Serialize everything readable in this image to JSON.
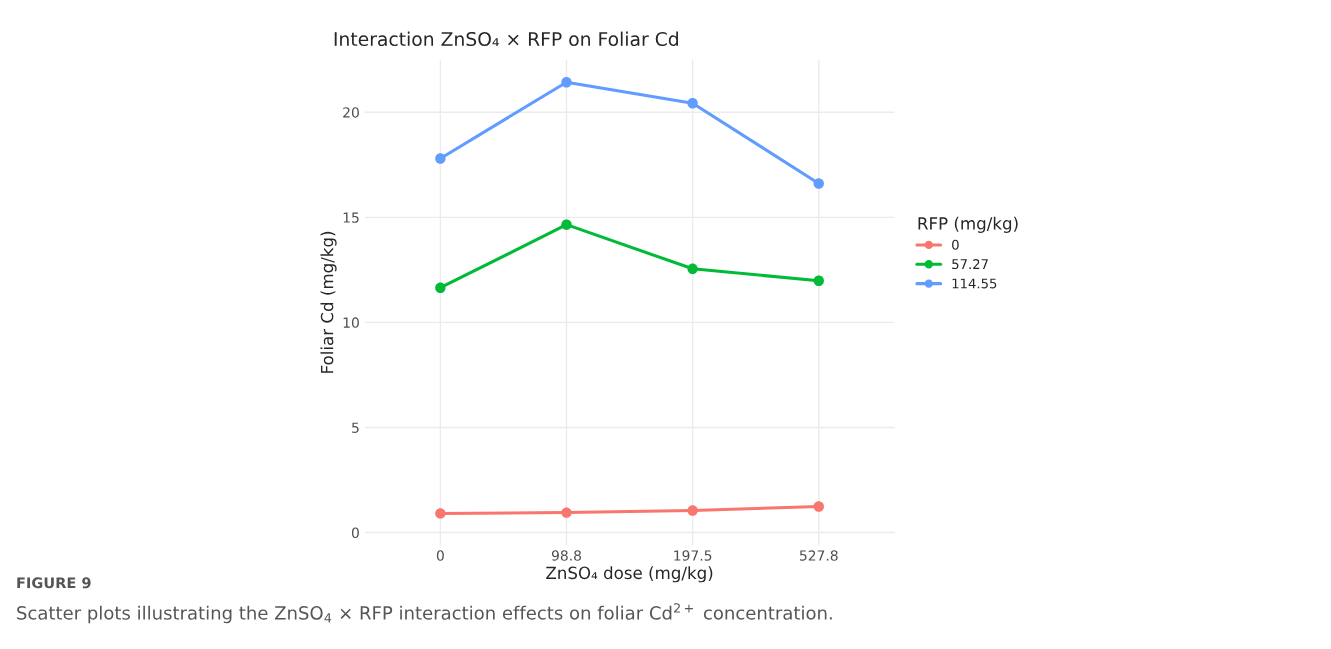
{
  "chart_data": {
    "type": "line",
    "title": "Interaction ZnSO₄ × RFP on Foliar Cd",
    "xlabel": "ZnSO₄ dose (mg/kg)",
    "ylabel": "Foliar Cd (mg/kg)",
    "legend_title": "RFP (mg/kg)",
    "categories": [
      "0",
      "98.8",
      "197.5",
      "527.8"
    ],
    "series": [
      {
        "name": "0",
        "color": "#f8766d",
        "values": [
          0.91,
          0.95,
          1.05,
          1.24
        ]
      },
      {
        "name": "57.27",
        "color": "#00ba38",
        "values": [
          11.65,
          14.65,
          12.55,
          11.98
        ]
      },
      {
        "name": "114.55",
        "color": "#619cff",
        "values": [
          17.8,
          21.43,
          20.43,
          16.61
        ]
      }
    ],
    "ylim": [
      -0.6,
      22.5
    ],
    "yticks": [
      0,
      5,
      10,
      15,
      20
    ],
    "grid": true,
    "legend": "right",
    "marker": "circle",
    "line_style": "solid",
    "annotations": [
      "FIGURE 9",
      "Scatter plots illustrating the ZnSO$_{4}$ × RFP interaction effects on foliar Cd$^{2+}$ concentration."
    ]
  }
}
